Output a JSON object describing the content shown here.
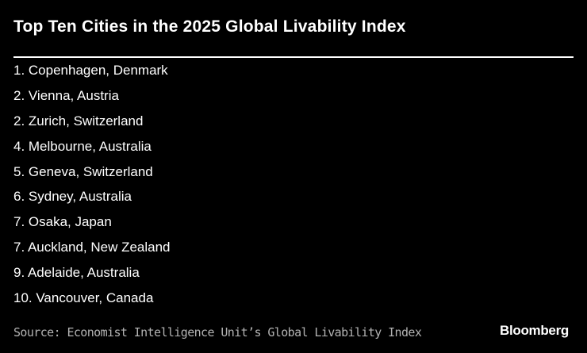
{
  "title": "Top Ten Cities in the 2025 Global Livability Index",
  "cities": [
    "1. Copenhagen, Denmark",
    "2. Vienna, Austria",
    "2. Zurich, Switzerland",
    "4. Melbourne, Australia",
    "5. Geneva, Switzerland",
    "6. Sydney, Australia",
    "7. Osaka, Japan",
    "7. Auckland, New Zealand",
    "9. Adelaide, Australia",
    "10. Vancouver, Canada"
  ],
  "source": "Source: Economist Intelligence Unit’s Global Livability Index",
  "logo": "Bloomberg",
  "colors": {
    "background": "#000000",
    "text": "#ffffff",
    "source_text": "#b3b3b3"
  }
}
